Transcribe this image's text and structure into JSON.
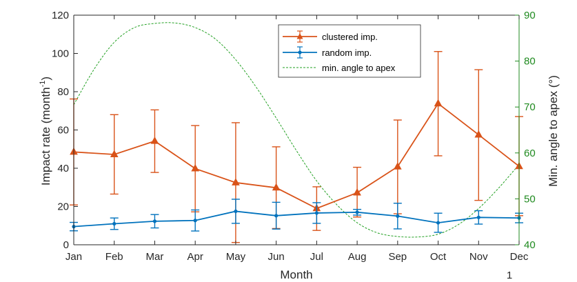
{
  "chart_data": {
    "type": "line",
    "categories": [
      "Jan",
      "Feb",
      "Mar",
      "Apr",
      "May",
      "Jun",
      "Jul",
      "Aug",
      "Sep",
      "Oct",
      "Nov",
      "Dec"
    ],
    "xlabel": "Month",
    "ylabel_main": "Impact rate (month",
    "ylabel_sup": "-1",
    "ylabel_close": ")",
    "ylim": [
      0,
      120
    ],
    "yticks": [
      0,
      20,
      40,
      60,
      80,
      100,
      120
    ],
    "ylabel_right": "Min. angle to apex (°)",
    "ylim_right": [
      40,
      90
    ],
    "yticks_right": [
      40,
      50,
      60,
      70,
      80,
      90
    ],
    "page_number": "1",
    "colors": {
      "clustered": "#d95319",
      "random": "#0072bd",
      "apex": "#22a022",
      "axis": "#262626",
      "right_axis": "#1f8a1f"
    },
    "series": [
      {
        "name": "clustered imp.",
        "marker": "triangle",
        "values": [
          48.5,
          47.2,
          54.2,
          39.8,
          32.5,
          29.8,
          19,
          27.2,
          40.8,
          73.8,
          57.5,
          41
        ],
        "lower": [
          20.8,
          26.5,
          37.8,
          17.2,
          1.2,
          8.5,
          7.5,
          14.5,
          16.2,
          46.5,
          23.2,
          15.2
        ],
        "upper": [
          76.2,
          68,
          70.5,
          62.3,
          63.8,
          51.2,
          30.3,
          40.5,
          65.2,
          101,
          91.5,
          67
        ]
      },
      {
        "name": "random imp.",
        "marker": "dot",
        "values": [
          9.5,
          11,
          12.3,
          12.7,
          17.5,
          15.2,
          16.6,
          17,
          15,
          11.5,
          14.3,
          14
        ],
        "lower": [
          7.3,
          8,
          8.8,
          7.2,
          11.2,
          8.2,
          11.2,
          15.5,
          8.3,
          6.5,
          10.8,
          11.5
        ],
        "upper": [
          11.7,
          14,
          15.8,
          18.2,
          23.8,
          22.2,
          22,
          18.5,
          21.7,
          16.5,
          17.8,
          16.5
        ]
      }
    ],
    "apex_series": {
      "name": "min. angle to apex",
      "x": [
        0,
        0.5,
        1,
        1.5,
        2,
        2.5,
        3,
        3.5,
        4,
        4.5,
        5,
        5.5,
        6,
        6.5,
        7,
        7.5,
        8,
        8.5,
        9,
        9.5,
        10,
        10.5,
        11
      ],
      "values": [
        70.5,
        78.2,
        84.1,
        87.3,
        88.2,
        88.3,
        87.3,
        84.8,
        80.3,
        74.4,
        67.6,
        60.5,
        53.9,
        48.7,
        44.8,
        42.6,
        41.8,
        41.7,
        42.3,
        44.4,
        47.9,
        52.4,
        57.5
      ]
    }
  }
}
